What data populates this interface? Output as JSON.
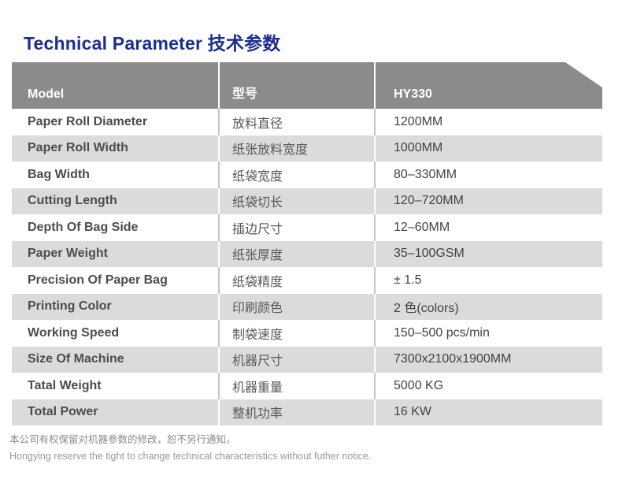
{
  "page": {
    "title": "Technical Parameter 技术参数"
  },
  "table": {
    "header": {
      "model": "Model",
      "model_zh": "型号",
      "value": "HY330"
    },
    "rows": [
      {
        "en": "Paper Roll Diameter",
        "zh": "放料直径",
        "value": "1200MM"
      },
      {
        "en": "Paper Roll Width",
        "zh": "纸张放料宽度",
        "value": "1000MM"
      },
      {
        "en": "Bag Width",
        "zh": "纸袋宽度",
        "value": "80–330MM"
      },
      {
        "en": "Cutting Length",
        "zh": "纸袋切长",
        "value": "120–720MM"
      },
      {
        "en": "Depth Of Bag Side",
        "zh": "插边尺寸",
        "value": "12–60MM"
      },
      {
        "en": "Paper Weight",
        "zh": "纸张厚度",
        "value": "35–100GSM"
      },
      {
        "en": "Precision Of Paper Bag",
        "zh": "纸袋精度",
        "value": "± 1.5"
      },
      {
        "en": "Printing Color",
        "zh": "印刷颜色",
        "value": "2 色(colors)"
      },
      {
        "en": "Working Speed",
        "zh": "制袋速度",
        "value": "150–500 pcs/min"
      },
      {
        "en": "Size Of Machine",
        "zh": "机器尺寸",
        "value": "7300x2100x1900MM"
      },
      {
        "en": "Tatal Weight",
        "zh": "机器重量",
        "value": "5000 KG"
      },
      {
        "en": "Total Power",
        "zh": "整机功率",
        "value": "16 KW"
      }
    ]
  },
  "footer": {
    "note_zh": "本公司有权保留对机器参数的修改，恕不另行通知。",
    "note_en": "Hongying reserve the tight to change technical characteristics without futher notice."
  },
  "colors": {
    "title_blue": "#1c2e91",
    "header_gray": "#8b8b8b",
    "alt_row_gray": "#dbdbdb"
  }
}
